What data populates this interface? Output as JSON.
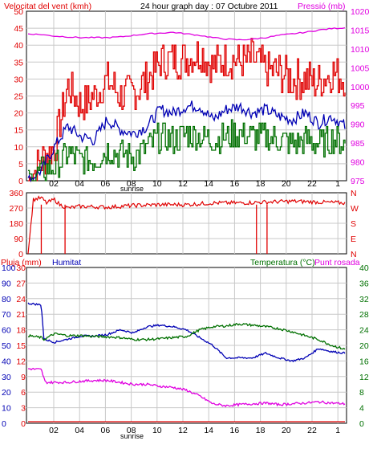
{
  "header": {
    "wind_label": "Velocitat del vent (kmh)",
    "title": "24 hour graph day : 07 Octubre 2011",
    "pressure_label": "Pressió (mb)",
    "sunrise": "sunrise"
  },
  "colors": {
    "red": "#e00000",
    "blue": "#0000b4",
    "green": "#007000",
    "magenta": "#e000e0",
    "grid": "#c8c8c8",
    "axis": "#000000"
  },
  "chart_data": [
    {
      "type": "line",
      "name": "wind-pressure",
      "x_ticks": [
        "02",
        "04",
        "06",
        "08",
        "10",
        "12",
        "14",
        "16",
        "18",
        "20",
        "22",
        "1"
      ],
      "y_left": {
        "label": "Velocitat del vent (kmh)",
        "ticks": [
          0,
          5,
          10,
          15,
          20,
          25,
          30,
          35,
          40,
          45,
          50
        ],
        "ylim": [
          0,
          50
        ]
      },
      "y_right": {
        "label": "Pressió (mb)",
        "ticks": [
          975,
          980,
          985,
          990,
          995,
          1000,
          1005,
          1010,
          1015,
          1020
        ],
        "ylim": [
          975,
          1020
        ]
      },
      "series": [
        {
          "color": "red",
          "axis": "left",
          "noise": 6,
          "points": [
            [
              0,
              0
            ],
            [
              1,
              6
            ],
            [
              2,
              10
            ],
            [
              3,
              28
            ],
            [
              4,
              22
            ],
            [
              5,
              25
            ],
            [
              6,
              30
            ],
            [
              7,
              25
            ],
            [
              8,
              26
            ],
            [
              9,
              30
            ],
            [
              10,
              35
            ],
            [
              11,
              36
            ],
            [
              12,
              36
            ],
            [
              13,
              38
            ],
            [
              14,
              34
            ],
            [
              15,
              36
            ],
            [
              16,
              35
            ],
            [
              17,
              36
            ],
            [
              18,
              33
            ],
            [
              19,
              32
            ],
            [
              20,
              30
            ],
            [
              21,
              30
            ],
            [
              22,
              29
            ],
            [
              23,
              32
            ],
            [
              24,
              30
            ]
          ]
        },
        {
          "color": "blue",
          "axis": "left",
          "noise": 1.8,
          "points": [
            [
              0,
              0
            ],
            [
              1,
              3
            ],
            [
              2,
              10
            ],
            [
              3,
              16
            ],
            [
              4,
              13
            ],
            [
              5,
              12
            ],
            [
              6,
              18
            ],
            [
              7,
              15
            ],
            [
              8,
              14
            ],
            [
              9,
              16
            ],
            [
              10,
              21
            ],
            [
              11,
              20
            ],
            [
              12,
              22
            ],
            [
              13,
              22
            ],
            [
              14,
              18
            ],
            [
              15,
              21
            ],
            [
              16,
              22
            ],
            [
              17,
              20
            ],
            [
              18,
              21
            ],
            [
              19,
              19
            ],
            [
              20,
              18
            ],
            [
              21,
              20
            ],
            [
              22,
              17
            ],
            [
              23,
              19
            ],
            [
              24,
              16
            ]
          ]
        },
        {
          "color": "green",
          "axis": "left",
          "noise": 4.5,
          "points": [
            [
              0,
              0
            ],
            [
              1,
              3
            ],
            [
              2,
              4
            ],
            [
              3,
              8
            ],
            [
              4,
              6
            ],
            [
              5,
              6
            ],
            [
              6,
              9
            ],
            [
              7,
              8
            ],
            [
              8,
              7
            ],
            [
              9,
              10
            ],
            [
              10,
              13
            ],
            [
              11,
              12
            ],
            [
              12,
              14
            ],
            [
              13,
              13
            ],
            [
              14,
              12
            ],
            [
              15,
              13
            ],
            [
              16,
              14
            ],
            [
              17,
              13
            ],
            [
              18,
              13
            ],
            [
              19,
              12
            ],
            [
              20,
              11
            ],
            [
              21,
              12
            ],
            [
              22,
              11
            ],
            [
              23,
              12
            ],
            [
              24,
              11
            ]
          ]
        },
        {
          "color": "magenta",
          "axis": "right",
          "noise": 0.15,
          "points": [
            [
              0,
              1014
            ],
            [
              1,
              1013.8
            ],
            [
              2,
              1013.4
            ],
            [
              3,
              1013.2
            ],
            [
              4,
              1013
            ],
            [
              5,
              1013
            ],
            [
              6,
              1013
            ],
            [
              7,
              1013.2
            ],
            [
              8,
              1013.6
            ],
            [
              9,
              1014
            ],
            [
              10,
              1014.2
            ],
            [
              11,
              1014.4
            ],
            [
              12,
              1014
            ],
            [
              13,
              1013.6
            ],
            [
              14,
              1013
            ],
            [
              15,
              1012.6
            ],
            [
              16,
              1012.4
            ],
            [
              17,
              1012.6
            ],
            [
              18,
              1013
            ],
            [
              19,
              1013.6
            ],
            [
              20,
              1014
            ],
            [
              21,
              1014.4
            ],
            [
              22,
              1015
            ],
            [
              23,
              1015.4
            ],
            [
              24,
              1015.6
            ]
          ]
        }
      ]
    },
    {
      "type": "line",
      "name": "wind-direction",
      "y_left": {
        "ticks": [
          0,
          90,
          180,
          270,
          360
        ],
        "ylim": [
          0,
          360
        ]
      },
      "y_right": {
        "ticks": [
          "N",
          "W",
          "S",
          "E",
          "N"
        ]
      },
      "series": [
        {
          "color": "red",
          "axis": "left",
          "noise": 12,
          "points": [
            [
              0,
              0
            ],
            [
              0.4,
              320
            ],
            [
              1,
              330
            ],
            [
              1.4,
              300
            ],
            [
              2,
              320
            ],
            [
              2.4,
              290
            ],
            [
              3,
              270
            ],
            [
              4,
              280
            ],
            [
              6,
              275
            ],
            [
              8,
              285
            ],
            [
              10,
              290
            ],
            [
              12,
              290
            ],
            [
              14,
              300
            ],
            [
              16,
              300
            ],
            [
              18,
              305
            ],
            [
              20,
              310
            ],
            [
              22,
              305
            ],
            [
              24,
              300
            ]
          ]
        },
        {
          "color": "red",
          "axis": "left",
          "spike": true,
          "points": [
            [
              1.0,
              0
            ],
            [
              2.8,
              0
            ],
            [
              17.3,
              0
            ],
            [
              18.1,
              0
            ]
          ]
        }
      ]
    },
    {
      "type": "line",
      "name": "rain-humidity-temperature",
      "labels": {
        "rain": "Pluja (mm)",
        "humidity": "Humitat",
        "temperature": "Temperatura (°C)",
        "dewpoint": "Punt rosada"
      },
      "y_left_rain": {
        "ticks": [
          0,
          3,
          6,
          9,
          12,
          15,
          18,
          21,
          24,
          27,
          30
        ],
        "ylim": [
          0,
          30
        ]
      },
      "y_left_humidity": {
        "ticks": [
          0,
          10,
          20,
          30,
          40,
          50,
          60,
          70,
          80,
          90,
          100
        ],
        "ylim": [
          0,
          100
        ]
      },
      "y_right": {
        "ticks": [
          0,
          4,
          8,
          12,
          16,
          20,
          24,
          28,
          32,
          36,
          40
        ],
        "ylim": [
          0,
          40
        ]
      },
      "series": [
        {
          "color": "blue",
          "axis": "humidity",
          "noise": 0.6,
          "points": [
            [
              0,
              77
            ],
            [
              1,
              76
            ],
            [
              1.2,
              54
            ],
            [
              2,
              52
            ],
            [
              3,
              54
            ],
            [
              4,
              56
            ],
            [
              5,
              56
            ],
            [
              6,
              57
            ],
            [
              7,
              60
            ],
            [
              8,
              58
            ],
            [
              9,
              62
            ],
            [
              10,
              63
            ],
            [
              11,
              62
            ],
            [
              12,
              60
            ],
            [
              13,
              55
            ],
            [
              14,
              50
            ],
            [
              15,
              42
            ],
            [
              16,
              42
            ],
            [
              17,
              42
            ],
            [
              18,
              45
            ],
            [
              19,
              42
            ],
            [
              20,
              40
            ],
            [
              21,
              42
            ],
            [
              22,
              48
            ],
            [
              23,
              46
            ],
            [
              24,
              45
            ]
          ]
        },
        {
          "color": "green",
          "axis": "right",
          "noise": 0.3,
          "points": [
            [
              0,
              22.5
            ],
            [
              1,
              22
            ],
            [
              1.2,
              21.5
            ],
            [
              2,
              23
            ],
            [
              3,
              22.5
            ],
            [
              4,
              22.5
            ],
            [
              5,
              22.3
            ],
            [
              6,
              22.2
            ],
            [
              7,
              22
            ],
            [
              8,
              21.5
            ],
            [
              9,
              21.5
            ],
            [
              10,
              21.7
            ],
            [
              11,
              22
            ],
            [
              12,
              22.3
            ],
            [
              13,
              24
            ],
            [
              14,
              24.8
            ],
            [
              15,
              25
            ],
            [
              16,
              25.5
            ],
            [
              17,
              25.2
            ],
            [
              18,
              24.8
            ],
            [
              19,
              24.3
            ],
            [
              20,
              23.5
            ],
            [
              21,
              22.5
            ],
            [
              22,
              21.5
            ],
            [
              23,
              20
            ],
            [
              24,
              19
            ]
          ]
        },
        {
          "color": "magenta",
          "axis": "right",
          "noise": 0.3,
          "points": [
            [
              0,
              14
            ],
            [
              1,
              13.8
            ],
            [
              1.3,
              10.5
            ],
            [
              2,
              10.5
            ],
            [
              3,
              10.5
            ],
            [
              4,
              10.8
            ],
            [
              5,
              11
            ],
            [
              6,
              11
            ],
            [
              7,
              10.5
            ],
            [
              8,
              10
            ],
            [
              9,
              10
            ],
            [
              10,
              9.5
            ],
            [
              11,
              9.2
            ],
            [
              12,
              8.5
            ],
            [
              13,
              7
            ],
            [
              14,
              5
            ],
            [
              15,
              4.5
            ],
            [
              16,
              4.8
            ],
            [
              17,
              5
            ],
            [
              18,
              5.2
            ],
            [
              19,
              4.8
            ],
            [
              20,
              5
            ],
            [
              21,
              5.2
            ],
            [
              22,
              5.5
            ],
            [
              23,
              5.2
            ],
            [
              24,
              5
            ]
          ]
        },
        {
          "color": "red",
          "axis": "rain",
          "noise": 0,
          "points": [
            [
              0,
              0
            ],
            [
              24,
              0
            ]
          ]
        }
      ]
    }
  ]
}
